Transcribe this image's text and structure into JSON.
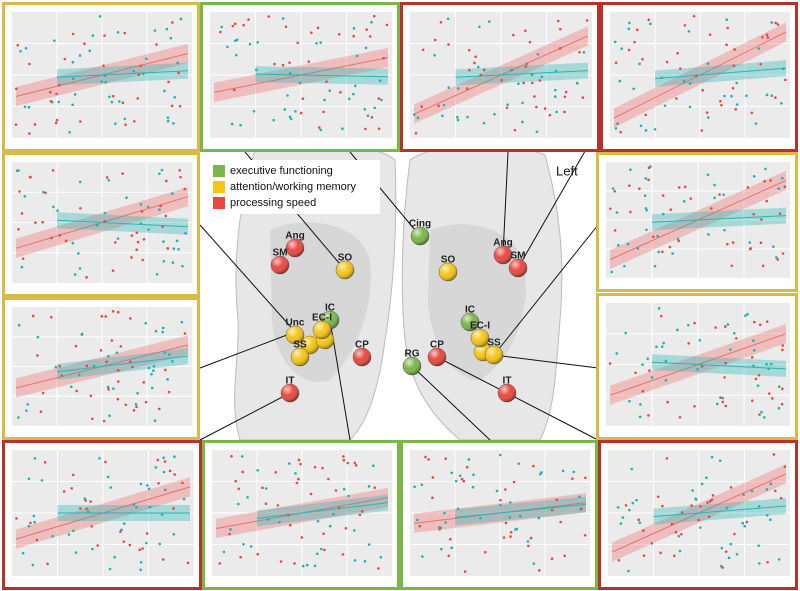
{
  "legend": [
    {
      "label": "executive functioning",
      "color": "#7ab648"
    },
    {
      "label": "attention/working memory",
      "color": "#f5c518"
    },
    {
      "label": "processing speed",
      "color": "#e8483f"
    }
  ],
  "orientation_label": "Left",
  "nodes": [
    {
      "label": "Ang",
      "color": "#e8483f"
    },
    {
      "label": "SM",
      "color": "#e8483f"
    },
    {
      "label": "SO",
      "color": "#f5c518"
    },
    {
      "label": "IC",
      "color": "#7ab648"
    },
    {
      "label": "Unc",
      "color": "#f5c518"
    },
    {
      "label": "EC-I",
      "color": "#f5c518"
    },
    {
      "label": "SS",
      "color": "#f5c518"
    },
    {
      "label": "CP",
      "color": "#e8483f"
    },
    {
      "label": "IT",
      "color": "#e8483f"
    },
    {
      "label": "Cing",
      "color": "#7ab648"
    },
    {
      "label": "SO",
      "color": "#f5c518"
    },
    {
      "label": "Ang",
      "color": "#e8483f"
    },
    {
      "label": "SM",
      "color": "#e8483f"
    },
    {
      "label": "IC",
      "color": "#7ab648"
    },
    {
      "label": "EC-I",
      "color": "#f5c518"
    },
    {
      "label": "CP",
      "color": "#e8483f"
    },
    {
      "label": "RG",
      "color": "#7ab648"
    },
    {
      "label": "SS",
      "color": "#f5c518"
    },
    {
      "label": "IT",
      "color": "#e8483f"
    }
  ]
}
